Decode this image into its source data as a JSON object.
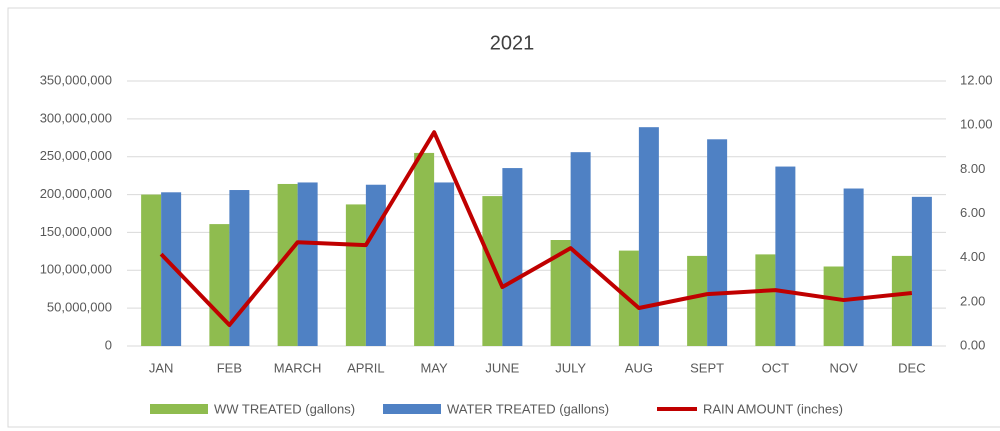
{
  "chart_data": {
    "type": "bar",
    "title": "2021",
    "categories": [
      "JAN",
      "FEB",
      "MARCH",
      "APRIL",
      "MAY",
      "JUNE",
      "JULY",
      "AUG",
      "SEPT",
      "OCT",
      "NOV",
      "DEC"
    ],
    "series": [
      {
        "name": "WW TREATED (gallons)",
        "color": "#8fbc4f",
        "type": "bar",
        "values": [
          200000000,
          161000000,
          214000000,
          187000000,
          255000000,
          198000000,
          140000000,
          126000000,
          119000000,
          121000000,
          105000000,
          119000000
        ]
      },
      {
        "name": "WATER TREATED (gallons)",
        "color": "#4f81c4",
        "type": "bar",
        "values": [
          203000000,
          206000000,
          216000000,
          213000000,
          216000000,
          235000000,
          256000000,
          289000000,
          273000000,
          237000000,
          208000000,
          197000000
        ]
      },
      {
        "name": "RAIN AMOUNT (inches)",
        "color": "#c00000",
        "type": "line",
        "axis": "y2",
        "values": [
          4.16,
          0.95,
          4.7,
          4.57,
          9.68,
          2.67,
          4.43,
          1.72,
          2.35,
          2.53,
          2.08,
          2.4
        ]
      }
    ],
    "ylim": [
      0,
      350000000
    ],
    "yticks": [
      0,
      {
        "value": 50000000,
        "label": "50,000,000"
      },
      {
        "value": 100000000,
        "label": "100,000,000"
      },
      {
        "value": 150000000,
        "label": "150,000,000"
      },
      {
        "value": 200000000,
        "label": "200,000,000"
      },
      {
        "value": 250000000,
        "label": "250,000,000"
      },
      {
        "value": 300000000,
        "label": "300,000,000"
      },
      {
        "value": 350000000,
        "label": "350,000,000"
      }
    ],
    "y2lim": [
      0,
      12
    ],
    "y2ticks": [
      {
        "value": 0,
        "label": "0.00"
      },
      {
        "value": 2,
        "label": "2.00"
      },
      {
        "value": 4,
        "label": "4.00"
      },
      {
        "value": 6,
        "label": "6.00"
      },
      {
        "value": 8,
        "label": "8.00"
      },
      {
        "value": 10,
        "label": "10.00"
      },
      {
        "value": 12,
        "label": "12.00"
      }
    ],
    "grid": true,
    "legend": "bottom"
  }
}
